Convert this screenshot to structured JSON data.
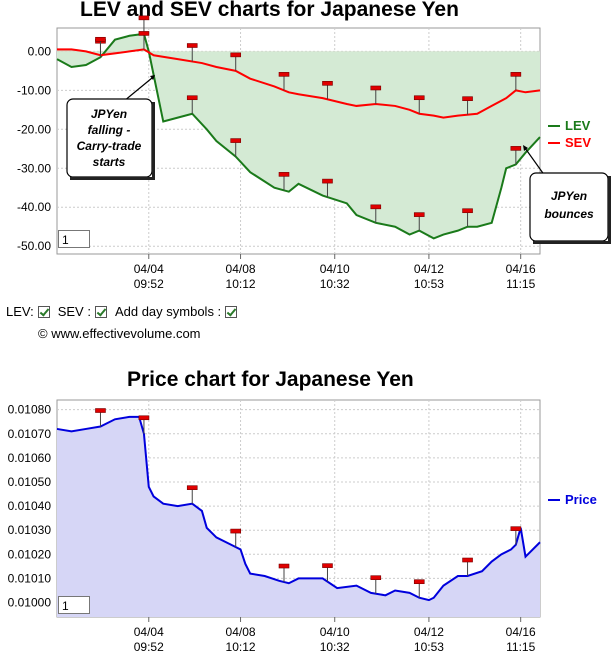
{
  "lev_chart": {
    "title": "LEV and SEV charts for Japanese Yen",
    "y_ticks": [
      "0.00",
      "-10.00",
      "-20.00",
      "-30.00",
      "-40.00",
      "-50.00"
    ],
    "x_ticks": [
      {
        "date": "04/04",
        "time": "09:52"
      },
      {
        "date": "04/08",
        "time": "10:12"
      },
      {
        "date": "04/10",
        "time": "10:32"
      },
      {
        "date": "04/12",
        "time": "10:53"
      },
      {
        "date": "04/16",
        "time": "11:15"
      }
    ],
    "legend": [
      {
        "label": "LEV",
        "color": "#1a7a1a"
      },
      {
        "label": "SEV",
        "color": "#ff0000"
      }
    ],
    "callouts": {
      "falling": [
        "JPYen",
        "falling -",
        "Carry-trade",
        "starts"
      ],
      "bounces": [
        "JPYen",
        "bounces"
      ]
    },
    "page_box_value": "1"
  },
  "controls": {
    "lev_label": "LEV:",
    "sev_label": "SEV :",
    "day_symbols_label": "Add day symbols :",
    "copyright": "© www.effectivevolume.com"
  },
  "price_chart": {
    "title": "Price chart for Japanese Yen",
    "y_ticks": [
      "0.01080",
      "0.01070",
      "0.01060",
      "0.01050",
      "0.01040",
      "0.01030",
      "0.01020",
      "0.01010",
      "0.01000"
    ],
    "x_ticks": [
      {
        "date": "04/04",
        "time": "09:52"
      },
      {
        "date": "04/08",
        "time": "10:12"
      },
      {
        "date": "04/10",
        "time": "10:32"
      },
      {
        "date": "04/12",
        "time": "10:53"
      },
      {
        "date": "04/16",
        "time": "11:15"
      }
    ],
    "legend": [
      {
        "label": "Price",
        "color": "#0000dd"
      }
    ],
    "page_box_value": "1"
  },
  "chart_data": [
    {
      "type": "line",
      "title": "LEV and SEV charts for Japanese Yen",
      "x_unit": "trading steps (0–100)",
      "ylim": [
        -52,
        6
      ],
      "grid": true,
      "legend_placement": "right",
      "series": [
        {
          "name": "LEV",
          "color": "#1a7a1a",
          "x": [
            0,
            3,
            6,
            9,
            12,
            15,
            18,
            19,
            20,
            22,
            25,
            28,
            31,
            33,
            37,
            40,
            45,
            48,
            50,
            55,
            60,
            62,
            66,
            70,
            73,
            75,
            78,
            80,
            83,
            85,
            87,
            90,
            92,
            93,
            95,
            97,
            100
          ],
          "y": [
            -2,
            -4,
            -3.5,
            -1.5,
            3,
            4,
            4.5,
            0,
            -6,
            -18,
            -17,
            -16,
            -20,
            -23,
            -27,
            -31,
            -35,
            -36,
            -34,
            -37,
            -39,
            -42,
            -44,
            -45,
            -47,
            -46,
            -48,
            -47,
            -46,
            -45,
            -45,
            -44,
            -35,
            -30,
            -29,
            -26,
            -22
          ]
        },
        {
          "name": "SEV",
          "color": "#ff0000",
          "x": [
            0,
            3,
            6,
            9,
            12,
            15,
            18,
            20,
            25,
            30,
            33,
            37,
            40,
            45,
            48,
            50,
            55,
            60,
            62,
            66,
            70,
            73,
            75,
            78,
            80,
            83,
            87,
            90,
            93,
            95,
            97,
            100
          ],
          "y": [
            0.5,
            0.5,
            0,
            -1,
            -0.5,
            0,
            0.5,
            -1,
            -2,
            -3,
            -4,
            -5,
            -7,
            -9,
            -10.5,
            -11,
            -12,
            -13.5,
            -14,
            -13.5,
            -14,
            -15,
            -16,
            -16.5,
            -17,
            -16.5,
            -16,
            -14,
            -12,
            -10,
            -10.5,
            -10
          ]
        }
      ],
      "day_markers_x": [
        9,
        18,
        28,
        37,
        47,
        56,
        66,
        75,
        85,
        95
      ]
    },
    {
      "type": "area",
      "title": "Price chart for Japanese Yen",
      "x_unit": "trading steps (0–100)",
      "ylim": [
        0.00994,
        0.01084
      ],
      "grid": true,
      "legend_placement": "right",
      "series": [
        {
          "name": "Price",
          "color": "#0000dd",
          "x": [
            0,
            3,
            6,
            9,
            12,
            15,
            17,
            18,
            19,
            20,
            22,
            25,
            28,
            30,
            31,
            33,
            36,
            38,
            39,
            40,
            43,
            46,
            48,
            50,
            55,
            58,
            62,
            65,
            68,
            70,
            73,
            75,
            77,
            78,
            80,
            83,
            85,
            88,
            90,
            92,
            94,
            95,
            96,
            97,
            100
          ],
          "y": [
            0.01072,
            0.01071,
            0.01072,
            0.01073,
            0.01076,
            0.01077,
            0.01077,
            0.0107,
            0.01048,
            0.01044,
            0.01041,
            0.0104,
            0.01041,
            0.01038,
            0.01031,
            0.01027,
            0.01024,
            0.01022,
            0.01016,
            0.01012,
            0.01011,
            0.01009,
            0.01008,
            0.0101,
            0.0101,
            0.01006,
            0.01007,
            0.01004,
            0.01003,
            0.01005,
            0.01004,
            0.01002,
            0.01001,
            0.01002,
            0.01007,
            0.01011,
            0.01011,
            0.01013,
            0.01017,
            0.0102,
            0.01022,
            0.01024,
            0.01031,
            0.01019,
            0.01025
          ]
        }
      ],
      "day_markers_x": [
        9,
        18,
        28,
        37,
        47,
        56,
        66,
        75,
        85,
        95
      ]
    }
  ]
}
